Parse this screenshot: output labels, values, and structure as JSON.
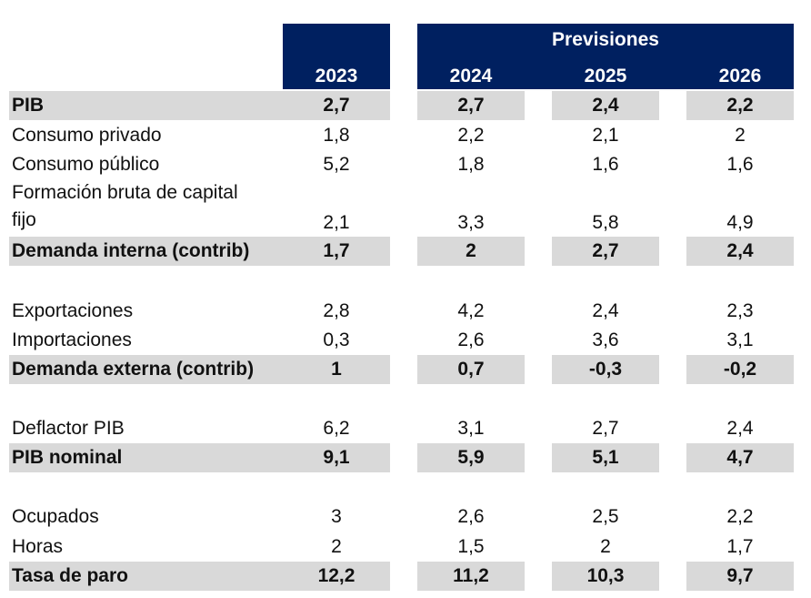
{
  "header": {
    "forecast_label": "Previsiones",
    "years": [
      "2023",
      "2024",
      "2025",
      "2026"
    ]
  },
  "rows": [
    {
      "label": "PIB",
      "values": [
        "2,7",
        "2,7",
        "2,4",
        "2,2"
      ],
      "bold": true
    },
    {
      "label": "Consumo privado",
      "values": [
        "1,8",
        "2,2",
        "2,1",
        "2"
      ],
      "bold": false
    },
    {
      "label": "Consumo público",
      "values": [
        "5,2",
        "1,8",
        "1,6",
        "1,6"
      ],
      "bold": false
    },
    {
      "label_line1": "Formación bruta de capital",
      "label_line2": "fijo",
      "values": [
        "2,1",
        "3,3",
        "5,8",
        "4,9"
      ],
      "bold": false
    },
    {
      "label": "Demanda interna (contrib)",
      "values": [
        "1,7",
        "2",
        "2,7",
        "2,4"
      ],
      "bold": true
    },
    {
      "label": "Exportaciones",
      "values": [
        "2,8",
        "4,2",
        "2,4",
        "2,3"
      ],
      "bold": false
    },
    {
      "label": "Importaciones",
      "values": [
        "0,3",
        "2,6",
        "3,6",
        "3,1"
      ],
      "bold": false
    },
    {
      "label": "Demanda externa (contrib)",
      "values": [
        "1",
        "0,7",
        "-0,3",
        "-0,2"
      ],
      "bold": true
    },
    {
      "label": "Deflactor PIB",
      "values": [
        "6,2",
        "3,1",
        "2,7",
        "2,4"
      ],
      "bold": false
    },
    {
      "label": "PIB nominal",
      "values": [
        "9,1",
        "5,9",
        "5,1",
        "4,7"
      ],
      "bold": true
    },
    {
      "label": "Ocupados",
      "values": [
        "3",
        "2,6",
        "2,5",
        "2,2"
      ],
      "bold": false
    },
    {
      "label": "Horas",
      "values": [
        "2",
        "1,5",
        "2",
        "1,7"
      ],
      "bold": false
    },
    {
      "label": "Tasa de paro",
      "values": [
        "12,2",
        "11,2",
        "10,3",
        "9,7"
      ],
      "bold": true
    }
  ],
  "colors": {
    "header_bg": "#002060",
    "header_text": "#ffffff",
    "row_shade": "#d9d9d9"
  }
}
